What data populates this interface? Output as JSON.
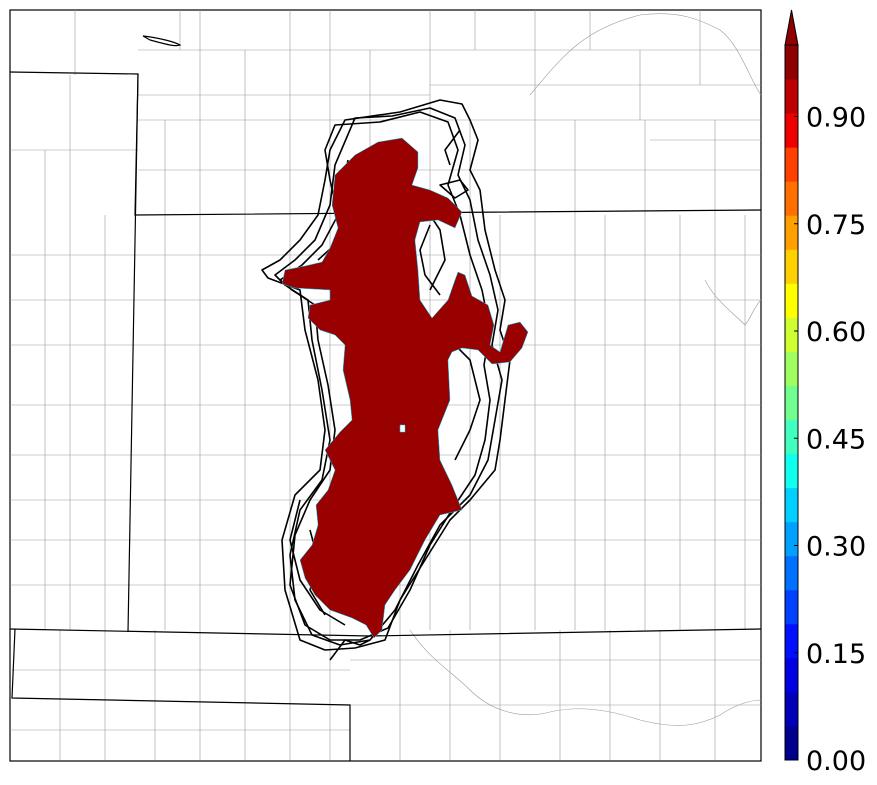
{
  "map": {
    "colors": {
      "fill": "#990000",
      "border": "#000000",
      "county": "#9a9a9a",
      "ensemble_contour": "#000000"
    }
  },
  "colorbar": {
    "tick_labels": [
      "0.00",
      "0.15",
      "0.30",
      "0.45",
      "0.60",
      "0.75",
      "0.90"
    ],
    "colors": [
      "#00008f",
      "#0000b8",
      "#0000e0",
      "#0010ff",
      "#0040ff",
      "#0070ff",
      "#00a0ff",
      "#00d0ff",
      "#10ffef",
      "#40ffbf",
      "#70ff8f",
      "#a0ff60",
      "#cfff30",
      "#ffff00",
      "#ffd000",
      "#ffa000",
      "#ff7000",
      "#ff4000",
      "#ef0000",
      "#bf0000",
      "#8f0000"
    ],
    "extend": "max"
  }
}
